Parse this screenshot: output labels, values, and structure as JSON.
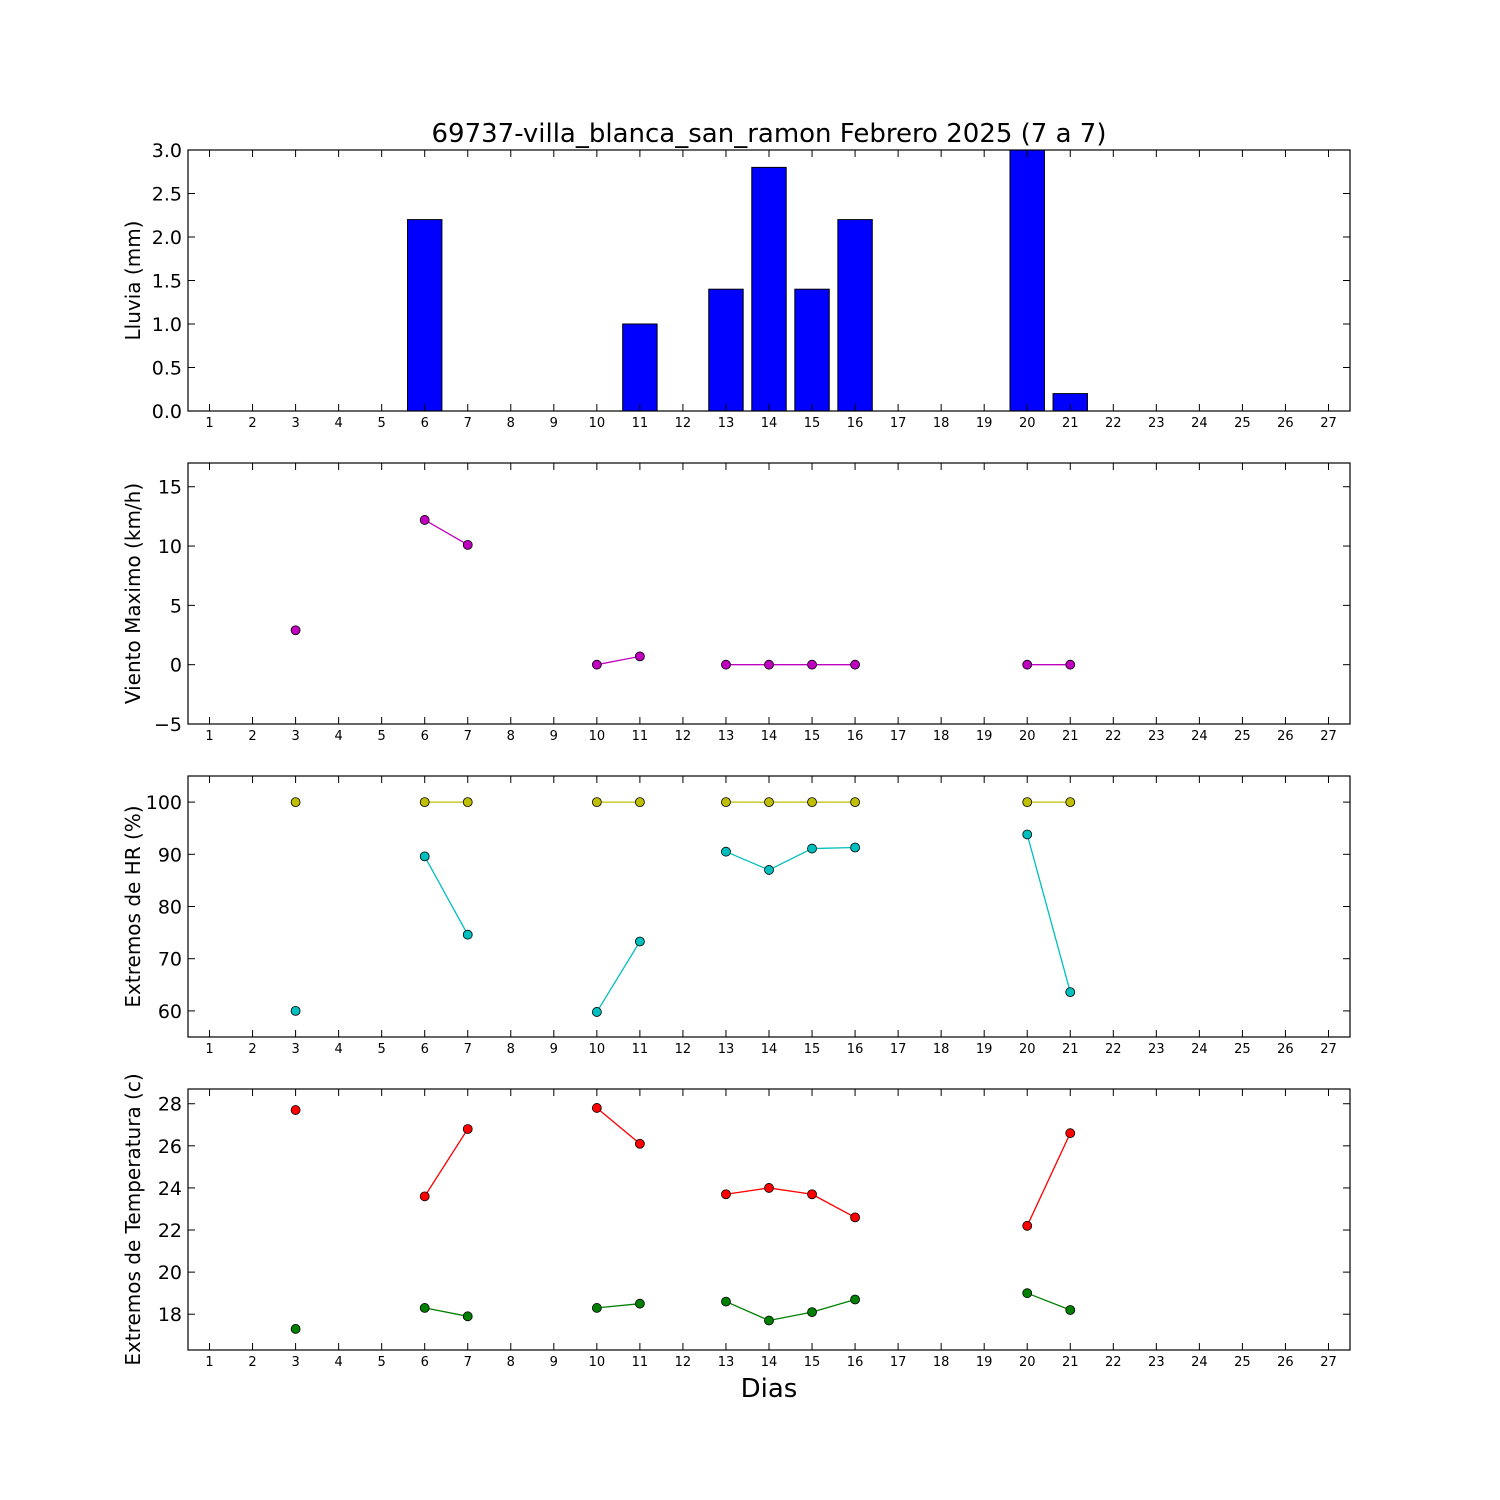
{
  "figure": {
    "title": "69737-villa_blanca_san_ramon Febrero 2025  (7 a 7)",
    "xlabel": "Dias"
  },
  "chart_data": [
    {
      "type": "bar",
      "ylabel": "Lluvia (mm)",
      "xlim": [
        0.5,
        27.5
      ],
      "ylim": [
        0,
        3.0
      ],
      "yticks": [
        0.0,
        0.5,
        1.0,
        1.5,
        2.0,
        2.5,
        3.0
      ],
      "ytick_labels": [
        "0.0",
        "0.5",
        "1.0",
        "1.5",
        "2.0",
        "2.5",
        "3.0"
      ],
      "xticks": [
        1,
        2,
        3,
        4,
        5,
        6,
        7,
        8,
        9,
        10,
        11,
        12,
        13,
        14,
        15,
        16,
        17,
        18,
        19,
        20,
        21,
        22,
        23,
        24,
        25,
        26,
        27
      ],
      "bar_color": "#0000ff",
      "series": [
        {
          "x": [
            3,
            6,
            7,
            10,
            11,
            13,
            14,
            15,
            16,
            20,
            21
          ],
          "values": [
            0.0,
            2.2,
            0.0,
            0.0,
            1.0,
            1.4,
            2.8,
            1.4,
            2.2,
            3.0,
            0.2
          ]
        }
      ]
    },
    {
      "type": "line",
      "ylabel": "Viento Maximo (km/h)",
      "xlim": [
        0.5,
        27.5
      ],
      "ylim": [
        -5,
        17
      ],
      "yticks": [
        -5,
        0,
        5,
        10,
        15
      ],
      "ytick_labels": [
        "−5",
        "0",
        "5",
        "10",
        "15"
      ],
      "xticks": [
        1,
        2,
        3,
        4,
        5,
        6,
        7,
        8,
        9,
        10,
        11,
        12,
        13,
        14,
        15,
        16,
        17,
        18,
        19,
        20,
        21,
        22,
        23,
        24,
        25,
        26,
        27
      ],
      "series": [
        {
          "color": "#bf00bf",
          "x": [
            3,
            6,
            7,
            10,
            11,
            13,
            14,
            15,
            16,
            20,
            21
          ],
          "values": [
            2.9,
            12.2,
            10.1,
            0.0,
            0.7,
            0.0,
            0.0,
            0.0,
            0.0,
            0.0,
            0.0
          ]
        }
      ]
    },
    {
      "type": "line",
      "ylabel": "Extremos de HR (%)",
      "xlim": [
        0.5,
        27.5
      ],
      "ylim": [
        55,
        105
      ],
      "yticks": [
        60,
        70,
        80,
        90,
        100
      ],
      "ytick_labels": [
        "60",
        "70",
        "80",
        "90",
        "100"
      ],
      "xticks": [
        1,
        2,
        3,
        4,
        5,
        6,
        7,
        8,
        9,
        10,
        11,
        12,
        13,
        14,
        15,
        16,
        17,
        18,
        19,
        20,
        21,
        22,
        23,
        24,
        25,
        26,
        27
      ],
      "series": [
        {
          "color": "#bfbf00",
          "x": [
            3,
            6,
            7,
            10,
            11,
            13,
            14,
            15,
            16,
            20,
            21
          ],
          "values": [
            100,
            100,
            100,
            100,
            100,
            100,
            100,
            100,
            100,
            100,
            100
          ]
        },
        {
          "color": "#00bfbf",
          "x": [
            3,
            6,
            7,
            10,
            11,
            13,
            14,
            15,
            16,
            20,
            21
          ],
          "values": [
            60.0,
            89.6,
            74.6,
            59.8,
            73.3,
            90.5,
            87.0,
            91.1,
            91.3,
            93.8,
            63.6
          ]
        }
      ]
    },
    {
      "type": "line",
      "ylabel": "Extremos de Temperatura (c)",
      "xlim": [
        0.5,
        27.5
      ],
      "ylim": [
        16.3,
        28.7
      ],
      "yticks": [
        18,
        20,
        22,
        24,
        26,
        28
      ],
      "ytick_labels": [
        "18",
        "20",
        "22",
        "24",
        "26",
        "28"
      ],
      "xticks": [
        1,
        2,
        3,
        4,
        5,
        6,
        7,
        8,
        9,
        10,
        11,
        12,
        13,
        14,
        15,
        16,
        17,
        18,
        19,
        20,
        21,
        22,
        23,
        24,
        25,
        26,
        27
      ],
      "series": [
        {
          "color": "#ff0000",
          "x": [
            3,
            6,
            7,
            10,
            11,
            13,
            14,
            15,
            16,
            20,
            21
          ],
          "values": [
            27.7,
            23.6,
            26.8,
            27.8,
            26.1,
            23.7,
            24.0,
            23.7,
            22.6,
            22.2,
            26.6
          ]
        },
        {
          "color": "#008000",
          "x": [
            3,
            6,
            7,
            10,
            11,
            13,
            14,
            15,
            16,
            20,
            21
          ],
          "values": [
            17.3,
            18.3,
            17.9,
            18.3,
            18.5,
            18.6,
            17.7,
            18.1,
            18.7,
            19.0,
            18.2
          ]
        }
      ]
    }
  ]
}
